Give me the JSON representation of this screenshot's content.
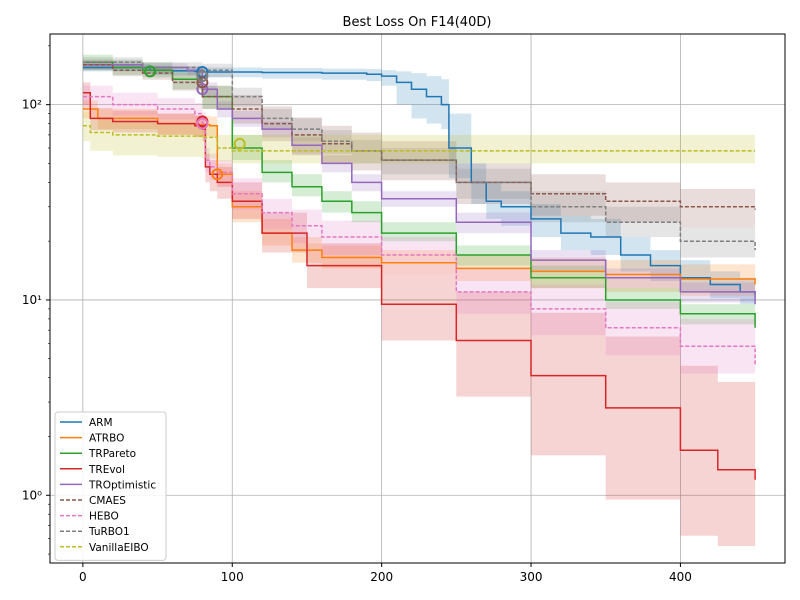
{
  "chart_data": {
    "type": "line",
    "title": "Best Loss On F14(40D)",
    "xlabel": "",
    "ylabel": "",
    "xlim": [
      -22,
      470
    ],
    "ylim": [
      0.45,
      230
    ],
    "yscale": "log",
    "grid": true,
    "legend_position": "lower-left",
    "x_ticks": [
      0,
      100,
      200,
      300,
      400
    ],
    "x_tick_labels": [
      "0",
      "100",
      "200",
      "300",
      "400"
    ],
    "y_ticks": [
      1,
      10,
      100
    ],
    "y_tick_labels": [
      "10⁰",
      "10¹",
      "10²"
    ],
    "series": [
      {
        "name": "ARM",
        "color": "#1f77b4",
        "dash": "solid",
        "x": [
          0,
          45,
          60,
          75,
          80,
          120,
          160,
          190,
          200,
          210,
          220,
          230,
          240,
          245,
          260,
          270,
          280,
          300,
          320,
          340,
          360,
          380,
          400,
          420,
          440,
          450
        ],
        "y": [
          155,
          150,
          149,
          148,
          147,
          146,
          145,
          143,
          140,
          130,
          120,
          110,
          100,
          60,
          40,
          32,
          30,
          26,
          22,
          21,
          17,
          15,
          13,
          12,
          11,
          10.6
        ],
        "lower": [
          148,
          142,
          141,
          140,
          138,
          136,
          134,
          132,
          125,
          100,
          85,
          80,
          75,
          42,
          31,
          26,
          24,
          21,
          18,
          17,
          14,
          12.5,
          11,
          10.2,
          9.5,
          9.2
        ],
        "upper": [
          162,
          158,
          157,
          156,
          155,
          154,
          153,
          152,
          150,
          148,
          145,
          140,
          135,
          90,
          50,
          40,
          36,
          31,
          27,
          26,
          21,
          18,
          16,
          14,
          13,
          12.5
        ],
        "marker": {
          "x": 80,
          "y": 147
        }
      },
      {
        "name": "ATRBO",
        "color": "#ff7f0e",
        "dash": "solid",
        "x": [
          0,
          10,
          50,
          75,
          85,
          90,
          100,
          120,
          140,
          160,
          200,
          250,
          300,
          350,
          400,
          450
        ],
        "y": [
          95,
          85,
          80,
          79,
          78,
          44,
          30,
          22,
          18,
          16.5,
          15.5,
          14.5,
          14,
          13.5,
          12.8,
          12
        ],
        "lower": [
          85,
          75,
          70,
          69,
          68,
          38,
          25,
          19,
          15.5,
          14.5,
          13.5,
          12.5,
          11.5,
          11,
          10.5,
          10
        ],
        "upper": [
          105,
          95,
          90,
          88,
          87,
          50,
          36,
          26,
          21,
          19,
          18,
          17,
          16.5,
          16,
          15.2,
          14.5
        ],
        "marker": {
          "x": 90,
          "y": 44
        }
      },
      {
        "name": "TRPareto",
        "color": "#2ca02c",
        "dash": "solid",
        "x": [
          0,
          20,
          40,
          60,
          80,
          100,
          120,
          140,
          160,
          180,
          200,
          250,
          300,
          350,
          400,
          450
        ],
        "y": [
          165,
          155,
          150,
          135,
          110,
          60,
          45,
          38,
          32,
          28,
          22,
          17,
          13,
          10,
          8.5,
          7.2
        ],
        "lower": [
          150,
          142,
          138,
          120,
          95,
          52,
          40,
          34,
          28,
          25,
          20,
          15,
          11.5,
          9,
          7.5,
          6.4
        ],
        "upper": [
          180,
          170,
          165,
          150,
          125,
          70,
          52,
          44,
          36,
          32,
          25,
          19,
          15,
          11.5,
          9.5,
          8.2
        ],
        "marker": {
          "x": 45,
          "y": 148
        }
      },
      {
        "name": "TREvol",
        "color": "#d62728",
        "dash": "solid",
        "x": [
          0,
          5,
          20,
          50,
          75,
          80,
          82,
          85,
          90,
          100,
          120,
          150,
          200,
          250,
          300,
          350,
          400,
          425,
          450
        ],
        "y": [
          115,
          85,
          82,
          80,
          78,
          75,
          48,
          44,
          40,
          32,
          22,
          15,
          9.5,
          6.2,
          4.1,
          2.8,
          1.7,
          1.35,
          1.2
        ],
        "lower": [
          100,
          74,
          72,
          70,
          68,
          65,
          40,
          36,
          33,
          26,
          17.5,
          11.5,
          6.2,
          3.2,
          1.6,
          0.95,
          0.62,
          0.55,
          0.52
        ],
        "upper": [
          130,
          96,
          93,
          90,
          88,
          85,
          56,
          52,
          48,
          40,
          28,
          19.5,
          13.5,
          11,
          8.6,
          6.5,
          4.6,
          3.8,
          3.5
        ],
        "marker": {
          "x": 80,
          "y": 82
        }
      },
      {
        "name": "TROptimistic",
        "color": "#9467bd",
        "dash": "solid",
        "x": [
          0,
          40,
          70,
          80,
          90,
          100,
          120,
          140,
          160,
          180,
          200,
          250,
          300,
          350,
          400,
          450
        ],
        "y": [
          160,
          155,
          150,
          120,
          95,
          85,
          75,
          62,
          50,
          40,
          33,
          25,
          16,
          13,
          11,
          9.5
        ],
        "lower": [
          152,
          147,
          142,
          110,
          86,
          77,
          68,
          56,
          45,
          36,
          30,
          22,
          14,
          11.5,
          9.7,
          8.3
        ],
        "upper": [
          168,
          163,
          158,
          130,
          104,
          93,
          82,
          68,
          55,
          44,
          36,
          28,
          18,
          14.5,
          12.3,
          10.8
        ],
        "marker": {
          "x": 80,
          "y": 120
        }
      },
      {
        "name": "CMAES",
        "color": "#8c564b",
        "dash": "dashed",
        "x": [
          0,
          20,
          40,
          60,
          80,
          100,
          120,
          140,
          160,
          180,
          200,
          250,
          300,
          350,
          400,
          450
        ],
        "y": [
          160,
          150,
          145,
          130,
          110,
          95,
          80,
          70,
          63,
          58,
          52,
          40,
          35,
          32,
          30,
          29
        ],
        "lower": [
          150,
          140,
          134,
          118,
          95,
          80,
          65,
          55,
          50,
          46,
          41,
          31,
          27,
          25,
          23.5,
          22.5
        ],
        "upper": [
          170,
          162,
          157,
          145,
          125,
          112,
          98,
          86,
          78,
          72,
          65,
          50,
          44,
          40,
          37,
          36
        ],
        "marker": {
          "x": 80,
          "y": 130
        }
      },
      {
        "name": "HEBO",
        "color": "#e377c2",
        "dash": "dashed",
        "x": [
          0,
          20,
          50,
          75,
          80,
          82,
          85,
          90,
          100,
          120,
          140,
          160,
          200,
          250,
          300,
          350,
          400,
          450
        ],
        "y": [
          110,
          100,
          95,
          90,
          80,
          52,
          48,
          45,
          35,
          28,
          24,
          21,
          17,
          11,
          9,
          7.2,
          5.8,
          4.6
        ],
        "lower": [
          95,
          88,
          84,
          80,
          70,
          45,
          41,
          38,
          29,
          23,
          19.5,
          17,
          13.5,
          8.5,
          6.6,
          5.2,
          4.2,
          3.7
        ],
        "upper": [
          125,
          115,
          108,
          102,
          92,
          60,
          56,
          52,
          42,
          33,
          29,
          25.5,
          21,
          14.5,
          12,
          9.8,
          8,
          6.5
        ],
        "marker": {
          "x": 80,
          "y": 80
        }
      },
      {
        "name": "TuRBO1",
        "color": "#7f7f7f",
        "dash": "dashed",
        "x": [
          0,
          40,
          80,
          100,
          120,
          140,
          160,
          180,
          200,
          250,
          300,
          350,
          400,
          450
        ],
        "y": [
          165,
          155,
          150,
          110,
          85,
          75,
          65,
          58,
          52,
          40,
          30,
          25,
          20,
          18
        ],
        "lower": [
          155,
          145,
          138,
          98,
          75,
          65,
          56,
          50,
          44,
          33,
          25,
          21,
          16.5,
          15
        ],
        "upper": [
          175,
          165,
          162,
          122,
          95,
          85,
          74,
          66,
          60,
          47,
          36,
          30,
          23.5,
          21.5
        ],
        "marker": {
          "x": 80,
          "y": 140
        }
      },
      {
        "name": "VanillaEIBO",
        "color": "#bcbd22",
        "dash": "dashed",
        "x": [
          0,
          5,
          20,
          50,
          80,
          90,
          100,
          450
        ],
        "y": [
          78,
          72,
          70,
          69,
          68,
          60,
          58,
          58
        ],
        "lower": [
          65,
          58,
          55,
          54,
          53,
          51,
          50,
          50
        ],
        "upper": [
          92,
          85,
          82,
          80,
          79,
          70,
          70,
          70
        ],
        "marker": {
          "x": 105,
          "y": 63
        }
      }
    ]
  }
}
